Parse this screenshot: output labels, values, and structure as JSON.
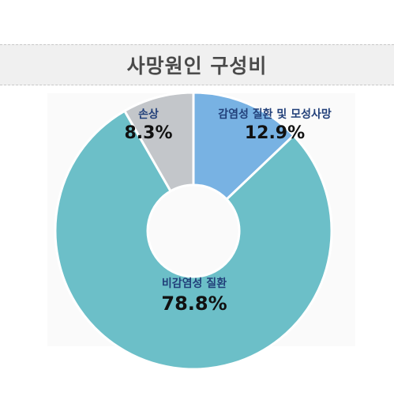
{
  "chart_data": {
    "type": "pie",
    "title": "사망원인 구성비",
    "slices": [
      {
        "label": "감염성 질환 및 모성사망",
        "value": 12.9,
        "value_label": "12.9%",
        "color": "#78b2e3"
      },
      {
        "label": "비감염성 질환",
        "value": 78.8,
        "value_label": "78.8%",
        "color": "#6cbfc8"
      },
      {
        "label": "손상",
        "value": 8.3,
        "value_label": "8.3%",
        "color": "#c3c6ca"
      }
    ],
    "donut": true,
    "legend": "none"
  }
}
